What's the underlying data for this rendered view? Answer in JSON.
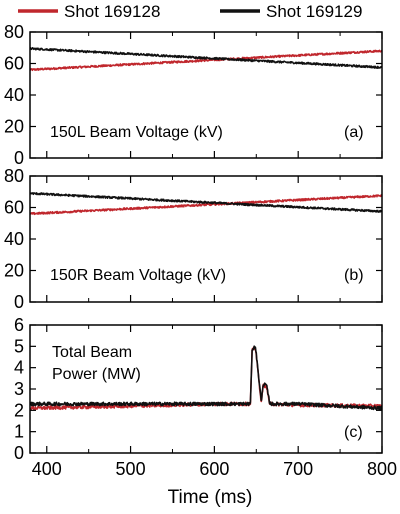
{
  "chart_data": {
    "type": "line",
    "legend": {
      "placement": "top",
      "entries": [
        {
          "label": "Shot 169128",
          "color": "#c0272d"
        },
        {
          "label": "Shot 169129",
          "color": "#111111"
        }
      ]
    },
    "x": {
      "label": "Time (ms)",
      "range": [
        380,
        800
      ],
      "ticks": [
        400,
        500,
        600,
        700,
        800
      ]
    },
    "panels": [
      {
        "label": "150L Beam Voltage (kV)",
        "tag": "(a)",
        "ylim": [
          0,
          80
        ],
        "yticks": [
          0,
          20,
          40,
          60,
          80
        ],
        "series": [
          {
            "name": "Shot 169128",
            "color": "#c0272d",
            "x": [
              380,
              800
            ],
            "y": [
              56,
              68
            ],
            "noise": 0.6
          },
          {
            "name": "Shot 169129",
            "color": "#111111",
            "x": [
              380,
              800
            ],
            "y": [
              69.5,
              57.5
            ],
            "noise": 0.6
          }
        ]
      },
      {
        "label": "150R Beam Voltage (kV)",
        "tag": "(b)",
        "ylim": [
          0,
          80
        ],
        "yticks": [
          0,
          20,
          40,
          60,
          80
        ],
        "series": [
          {
            "name": "Shot 169128",
            "color": "#c0272d",
            "x": [
              380,
              800
            ],
            "y": [
              56,
              67.5
            ],
            "noise": 0.6
          },
          {
            "name": "Shot 169129",
            "color": "#111111",
            "x": [
              380,
              800
            ],
            "y": [
              69,
              57.5
            ],
            "noise": 0.6
          }
        ]
      },
      {
        "label_lines": [
          "Total Beam",
          "Power (MW)"
        ],
        "tag": "(c)",
        "ylim": [
          0,
          6
        ],
        "yticks": [
          0,
          1,
          2,
          3,
          4,
          5,
          6
        ],
        "series": [
          {
            "name": "Shot 169128",
            "color": "#c0272d",
            "x": [
              380,
              500,
              600,
              643,
              645,
              649,
              656,
              658,
              662,
              666,
              668,
              700,
              800
            ],
            "y": [
              2.1,
              2.2,
              2.3,
              2.3,
              4.8,
              4.95,
              2.35,
              3.15,
              3.15,
              2.3,
              2.3,
              2.25,
              2.2
            ],
            "noise": 0.08
          },
          {
            "name": "Shot 169129",
            "color": "#111111",
            "x": [
              380,
              500,
              600,
              643,
              645,
              649,
              656,
              658,
              662,
              666,
              668,
              700,
              800
            ],
            "y": [
              2.3,
              2.3,
              2.3,
              2.3,
              4.85,
              5.0,
              2.4,
              3.2,
              3.2,
              2.35,
              2.3,
              2.3,
              2.1
            ],
            "noise": 0.08
          }
        ]
      }
    ]
  }
}
